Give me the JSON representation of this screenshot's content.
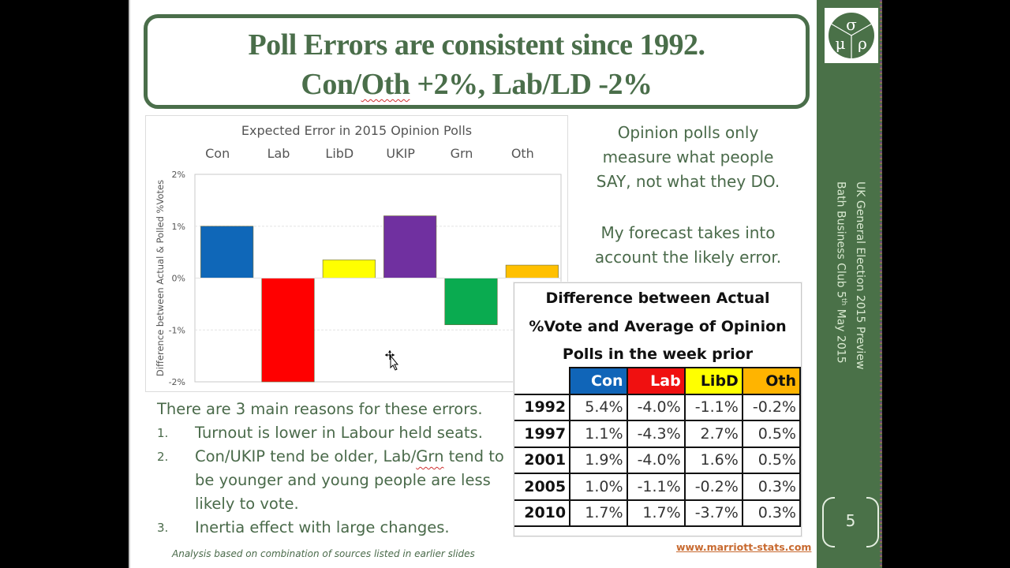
{
  "slide": {
    "title_line1": "Poll Errors are consistent since 1992.",
    "title_line2_prefix": "Con/",
    "title_line2_flagged": "Oth",
    "title_line2_suffix": " +2%, Lab/LD -2%",
    "page_number": "5",
    "logo": {
      "symbols": [
        "σ",
        "μ",
        "ρ"
      ],
      "name": "marriott-stats-logo"
    },
    "sidebar_line1": "UK General Election 2015 Preview",
    "sidebar_line2_prefix": "Bath Business Club 5",
    "sidebar_line2_sup": "th",
    "sidebar_line2_suffix": " May 2015",
    "side_note_1": [
      "Opinion polls only",
      "measure what people",
      "SAY, not what they DO."
    ],
    "side_note_2": [
      "My forecast takes into",
      "account the likely error."
    ],
    "reasons_intro": "There are 3 main reasons for these errors.",
    "reasons": [
      {
        "num": "1.",
        "text": "Turnout is lower in Labour held seats."
      },
      {
        "num": "2.",
        "text_before": "Con/UKIP tend be older, Lab/",
        "text_flagged": "Grn",
        "text_after": " tend to be younger and young people are less likely to vote."
      },
      {
        "num": "3.",
        "text": "Inertia effect with large changes."
      }
    ],
    "footnote": "Analysis based on combination of sources listed in earlier slides",
    "website": "www.marriott-stats.com",
    "colors": {
      "brand_green": "#4a7148",
      "title_green": "#4a6e4a",
      "text_green": "#4a6a4a"
    }
  },
  "table": {
    "title_lines": [
      "Difference between Actual",
      "%Vote and Average of Opinion",
      "Polls in the week prior"
    ],
    "columns": [
      "Con",
      "Lab",
      "LibD",
      "Oth"
    ],
    "rows": [
      {
        "year": "1992",
        "values": [
          "5.4%",
          "-4.0%",
          "-1.1%",
          "-0.2%"
        ]
      },
      {
        "year": "1997",
        "values": [
          "1.1%",
          "-4.3%",
          "2.7%",
          "0.5%"
        ]
      },
      {
        "year": "2001",
        "values": [
          "1.9%",
          "-4.0%",
          "1.6%",
          "0.5%"
        ]
      },
      {
        "year": "2005",
        "values": [
          "1.0%",
          "-1.1%",
          "-0.2%",
          "0.3%"
        ]
      },
      {
        "year": "2010",
        "values": [
          "1.7%",
          "1.7%",
          "-3.7%",
          "0.3%"
        ]
      }
    ]
  },
  "chart_data": {
    "type": "bar",
    "title": "Expected Error in 2015 Opinion Polls",
    "categories": [
      "Con",
      "Lab",
      "LibD",
      "UKIP",
      "Grn",
      "Oth"
    ],
    "values": [
      1.0,
      -2.0,
      0.35,
      1.2,
      -0.9,
      0.25
    ],
    "colors": [
      "#0f67b8",
      "#ff0000",
      "#ffff00",
      "#7030a0",
      "#0aab50",
      "#ffc000"
    ],
    "xlabel": "",
    "ylabel": "Difference between Actual & Polled %Votes",
    "ylim": [
      -2,
      2
    ],
    "yticks": [
      2,
      1,
      0,
      -1,
      -2
    ],
    "ytick_labels": [
      "2%",
      "1%",
      "0%",
      "-1%",
      "-2%"
    ],
    "category_labels_position": "top",
    "grid": true,
    "legend": "none"
  }
}
